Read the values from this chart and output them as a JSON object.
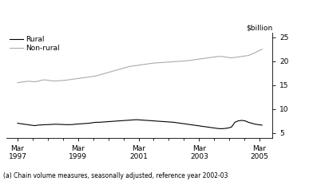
{
  "title": "",
  "ylabel": "$billion",
  "footnote": "(a) Chain volume measures, seasonally adjusted, reference year 2002-03",
  "legend_rural": "Rural",
  "legend_nonrural": "Non-rural",
  "rural_color": "#000000",
  "nonrural_color": "#aaaaaa",
  "ylim": [
    4,
    26
  ],
  "yticks": [
    5,
    10,
    15,
    20,
    25
  ],
  "xtick_labels": [
    "Mar\n1997",
    "Mar\n1999",
    "Mar\n2001",
    "Mar\n2003",
    "Mar\n2005"
  ],
  "rural_data": [
    7.0,
    6.9,
    6.8,
    6.7,
    6.6,
    6.5,
    6.6,
    6.65,
    6.7,
    6.72,
    6.75,
    6.8,
    6.78,
    6.75,
    6.72,
    6.7,
    6.72,
    6.8,
    6.85,
    6.9,
    6.95,
    7.0,
    7.1,
    7.2,
    7.2,
    7.25,
    7.3,
    7.35,
    7.4,
    7.45,
    7.5,
    7.55,
    7.6,
    7.65,
    7.7,
    7.75,
    7.7,
    7.65,
    7.6,
    7.55,
    7.5,
    7.45,
    7.4,
    7.35,
    7.3,
    7.25,
    7.2,
    7.1,
    7.0,
    6.9,
    6.8,
    6.7,
    6.6,
    6.5,
    6.4,
    6.3,
    6.2,
    6.1,
    6.0,
    5.9,
    5.85,
    5.9,
    6.0,
    6.2,
    7.2,
    7.5,
    7.6,
    7.5,
    7.2,
    7.0,
    6.8,
    6.7,
    6.6
  ],
  "nonrural_data": [
    15.5,
    15.6,
    15.7,
    15.8,
    15.75,
    15.7,
    15.8,
    16.0,
    16.1,
    16.0,
    15.9,
    15.85,
    15.9,
    15.95,
    16.0,
    16.1,
    16.2,
    16.3,
    16.4,
    16.5,
    16.6,
    16.7,
    16.8,
    16.9,
    17.1,
    17.3,
    17.5,
    17.7,
    17.9,
    18.1,
    18.3,
    18.5,
    18.7,
    18.9,
    19.0,
    19.1,
    19.2,
    19.3,
    19.4,
    19.5,
    19.6,
    19.65,
    19.7,
    19.75,
    19.8,
    19.85,
    19.9,
    19.95,
    20.0,
    20.05,
    20.1,
    20.2,
    20.3,
    20.4,
    20.5,
    20.6,
    20.7,
    20.8,
    20.9,
    21.0,
    21.0,
    20.9,
    20.8,
    20.7,
    20.8,
    20.9,
    21.0,
    21.1,
    21.2,
    21.5,
    21.8,
    22.2,
    22.5
  ],
  "n_points": 73,
  "x_start": 1997.17,
  "x_end": 2005.25,
  "xlim_left": 1996.8,
  "xlim_right": 2005.6
}
